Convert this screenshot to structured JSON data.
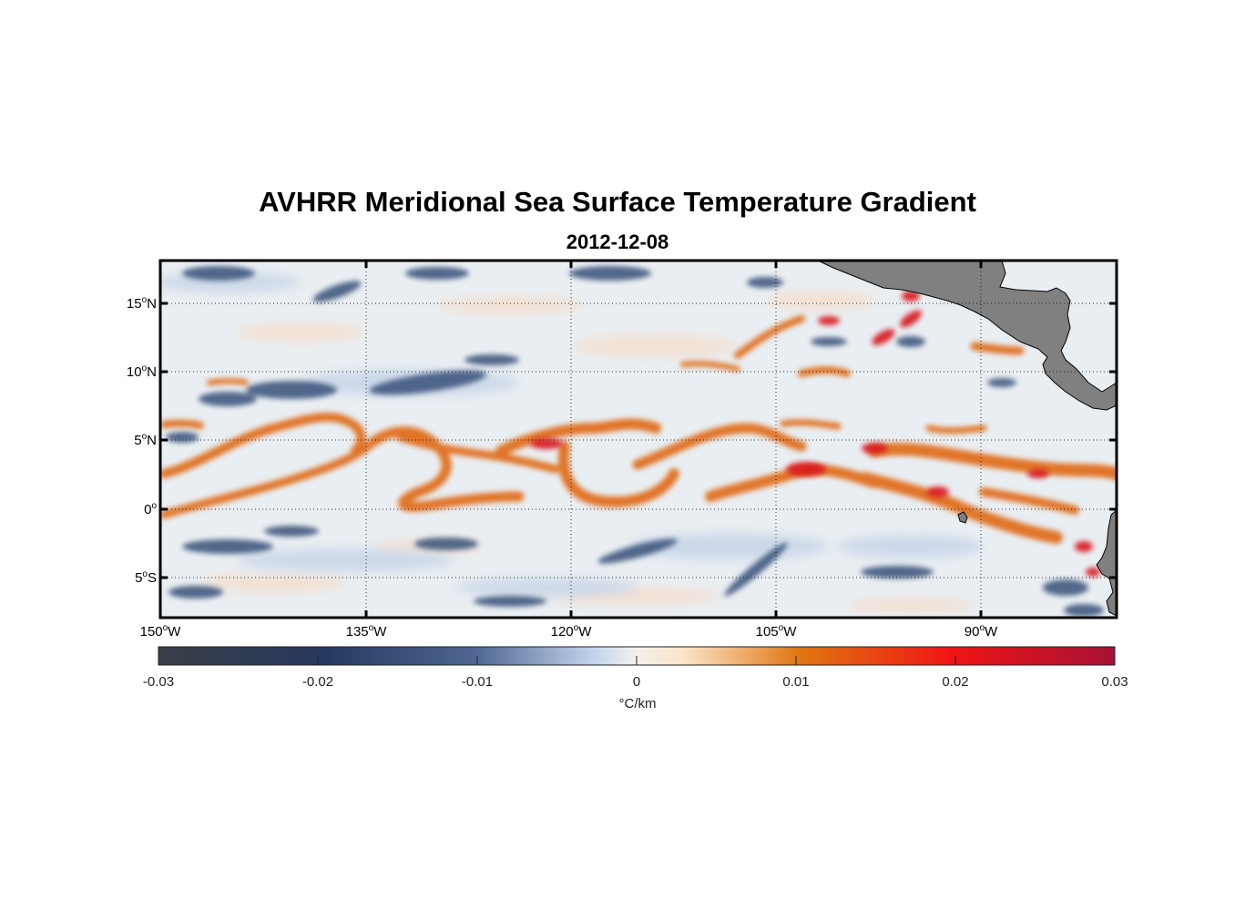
{
  "title": "AVHRR Meridional Sea Surface Temperature Gradient",
  "subtitle": "2012-12-08",
  "colors": {
    "ocean_bg": "#e9eef2",
    "land": "#808080",
    "positive_orange": "#e06a16",
    "positive_red": "#d8141c",
    "negative_blue": "#41587f",
    "light_blue": "#c8d6e8",
    "light_peach": "#f6dcc8"
  },
  "axes": {
    "y_labels": [
      {
        "deg": "15",
        "hem": "N"
      },
      {
        "deg": "10",
        "hem": "N"
      },
      {
        "deg": "5",
        "hem": "N"
      },
      {
        "deg": "0",
        "hem": ""
      },
      {
        "deg": "5",
        "hem": "S"
      }
    ],
    "x_labels": [
      {
        "deg": "150",
        "hem": "W"
      },
      {
        "deg": "135",
        "hem": "W"
      },
      {
        "deg": "120",
        "hem": "W"
      },
      {
        "deg": "105",
        "hem": "W"
      },
      {
        "deg": "90",
        "hem": "W"
      }
    ]
  },
  "colorbar": {
    "ticks": [
      "-0.03",
      "-0.02",
      "-0.01",
      "0",
      "0.01",
      "0.02",
      "0.03"
    ],
    "unit": "°C/km",
    "stops": [
      "#3a3f47",
      "#26385e",
      "#4e6593",
      "#c7d8ee",
      "#f4f1ec",
      "#fbe3c8",
      "#e07612",
      "#f01414",
      "#a61234"
    ]
  }
}
